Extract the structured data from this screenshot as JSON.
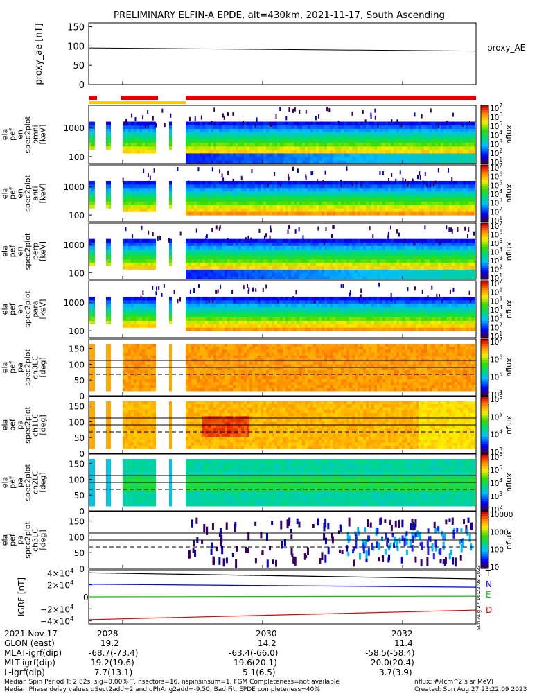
{
  "title": "PRELIMINARY ELFIN-A EPDE, alt=430km, 2021-11-17, South Ascending",
  "colors": {
    "orange_bar": "#e00000",
    "yellow_bar": "#ffcc00",
    "grf_T": "#000000",
    "grf_N": "#0000ff",
    "grf_E": "#00c000",
    "grf_D": "#e00000"
  },
  "proxy_panel": {
    "ylabel": "proxy_ae [nT]",
    "legend": "proxy_AE",
    "yticks": [
      "150",
      "100",
      "50",
      "0"
    ]
  },
  "spec_panels": [
    {
      "ylabel_lines": [
        "ela",
        "pef",
        "en",
        "spec2plot",
        "omni",
        "[keV]"
      ],
      "yticks": [
        "1000",
        "100"
      ],
      "cbar_label": "nflux",
      "cbar_ticks": [
        "10^7",
        "10^6",
        "10^5",
        "10^4",
        "10^3",
        "10^2",
        "10^1"
      ],
      "variant": "omni"
    },
    {
      "ylabel_lines": [
        "ela",
        "pef",
        "en",
        "spec2plot",
        "anti",
        "[keV]"
      ],
      "yticks": [
        "1000",
        "100"
      ],
      "cbar_label": "nflux",
      "cbar_ticks": [
        "10^7",
        "10^6",
        "10^5",
        "10^4",
        "10^3",
        "10^2",
        "10^1"
      ],
      "variant": "anti"
    },
    {
      "ylabel_lines": [
        "ela",
        "pef",
        "en",
        "spec2plot",
        "perp",
        "[keV]"
      ],
      "yticks": [
        "1000",
        "100"
      ],
      "cbar_label": "nflux",
      "cbar_ticks": [
        "10^7",
        "10^6",
        "10^5",
        "10^4",
        "10^3",
        "10^2",
        "10^1"
      ],
      "variant": "perp"
    },
    {
      "ylabel_lines": [
        "ela",
        "pef",
        "en",
        "spec2plot",
        "para",
        "[keV]"
      ],
      "yticks": [
        "1000",
        "100"
      ],
      "cbar_label": "nflux",
      "cbar_ticks": [
        "10^7",
        "10^6",
        "10^5",
        "10^4",
        "10^3",
        "10^2",
        "10^1"
      ],
      "variant": "para"
    },
    {
      "ylabel_lines": [
        "ela",
        "pef",
        "pa",
        "spec2plot",
        "ch0LC",
        "[deg]"
      ],
      "yticks": [
        "150",
        "100",
        "50",
        "0"
      ],
      "cbar_label": "nflux",
      "cbar_ticks": [
        "10^7",
        "10^6",
        "10^5",
        "10^4"
      ],
      "variant": "ch0"
    },
    {
      "ylabel_lines": [
        "ela",
        "pef",
        "pa",
        "spec2plot",
        "ch1LC",
        "[deg]"
      ],
      "yticks": [
        "150",
        "100",
        "50",
        "0"
      ],
      "cbar_label": "nflux",
      "cbar_ticks": [
        "10^6",
        "10^5",
        "10^4",
        "10^3"
      ],
      "variant": "ch1"
    },
    {
      "ylabel_lines": [
        "ela",
        "pef",
        "pa",
        "spec2plot",
        "ch2LC",
        "[deg]"
      ],
      "yticks": [
        "150",
        "100",
        "50",
        "0"
      ],
      "cbar_label": "nflux",
      "cbar_ticks": [
        "10^6",
        "10^5",
        "10^4",
        "10^3",
        "10^2"
      ],
      "variant": "ch2"
    },
    {
      "ylabel_lines": [
        "ela",
        "pef",
        "pa",
        "spec2plot",
        "ch3LC",
        "[deg]"
      ],
      "yticks": [
        "150",
        "100",
        "50",
        "0"
      ],
      "cbar_label": "nflux",
      "cbar_ticks": [
        "10000",
        "1000",
        "100",
        "10"
      ],
      "variant": "ch3"
    }
  ],
  "grf_panel": {
    "ylabel": "IGRF [nT]",
    "yticks": [
      "4×10^4",
      "2×10^4",
      "0",
      "−2×10^4",
      "−4×10^4"
    ],
    "components": [
      "T",
      "N",
      "E",
      "D"
    ],
    "side_stamp": "Sun Aug 27 16:22:08 2023"
  },
  "chart_data": {
    "type": "heatmap",
    "title": "PRELIMINARY ELFIN-A EPDE, alt=430km, 2021-11-17, South Ascending",
    "x_ticks": [
      "2028",
      "2030",
      "2032"
    ],
    "proxy_ae": {
      "ylim": [
        0,
        160
      ],
      "start": 95,
      "end": 87
    },
    "igrf": {
      "ylim": [
        -45000,
        45000
      ],
      "series": [
        {
          "name": "T",
          "start": 40000,
          "end": 30000
        },
        {
          "name": "N",
          "start": 21000,
          "end": 16000
        },
        {
          "name": "E",
          "start": 0,
          "end": 1000
        },
        {
          "name": "D",
          "start": -38000,
          "end": -22000
        }
      ]
    },
    "energy_ylim_keV": [
      60,
      5000
    ],
    "pitch_angle_ylim_deg": [
      0,
      180
    ],
    "pitch_angle_reference_lines_deg": {
      "solid": [
        90,
        112
      ],
      "dashed": 68
    }
  },
  "footer": {
    "rows": [
      {
        "label": "2021 Nov 17",
        "values": [
          "2028",
          "2030",
          "2032"
        ]
      },
      {
        "label": "GLON (east)",
        "values": [
          "19.2",
          "14.2",
          "11.4"
        ]
      },
      {
        "label": "MLAT-igrf(dip)",
        "values": [
          "-68.7(-73.4)",
          "-63.4(-66.0)",
          "-58.5(-58.4)"
        ]
      },
      {
        "label": "MLT-igrf(dip)",
        "values": [
          "19.2(19.6)",
          "19.6(20.1)",
          "20.0(20.4)"
        ]
      },
      {
        "label": "L-igrf(dip)",
        "values": [
          "7.7(13.1)",
          "5.1(6.5)",
          "3.7(3.9)"
        ]
      }
    ],
    "note1": "Median Spin Period T: 2.82s, sig=0.00% T, nsectors=16, nspinsinsum=1, FGM Completeness=not available",
    "note2": "Median Phase delay values dSect2add=2 and dPhAng2add=-9.50, Bad Fit, EPDE completeness=40%",
    "units": "nflux: #/(cm^2 s sr MeV)",
    "created": "Created: Sun Aug 27 23:22:09 2023"
  }
}
